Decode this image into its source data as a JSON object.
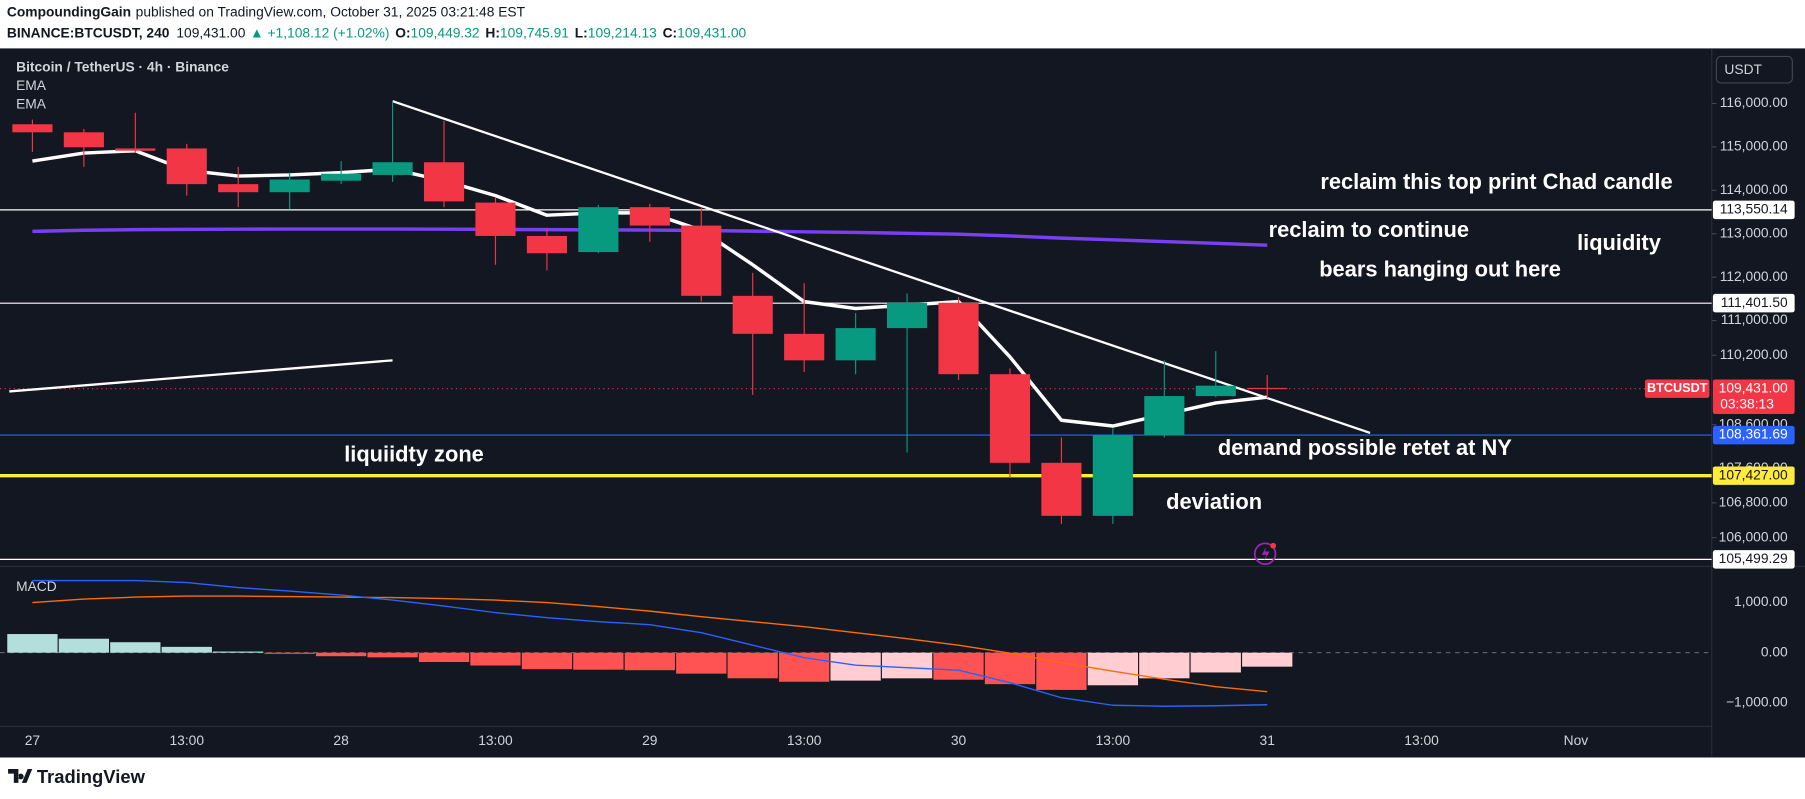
{
  "header": {
    "author": "CompoundingGain",
    "published": "published on TradingView.com, October 31, 2025 03:21:48 EST",
    "symbol": "BINANCE:BTCUSDT, 240",
    "last": "109,431.00",
    "change": "▲ +1,108.12 (+1.02%)",
    "open_label": "O:",
    "open": "109,449.32",
    "high_label": "H:",
    "high": "109,745.91",
    "low_label": "L:",
    "low": "109,214.13",
    "close_label": "C:",
    "close": "109,431.00"
  },
  "footer": {
    "brand": "TradingView"
  },
  "chart_data": {
    "type": "candlestick",
    "title": "Bitcoin / TetherUS · 4h · Binance",
    "currency": "USDT",
    "open": [
      115522,
      115337,
      114965,
      114965,
      114143,
      113957,
      114222,
      114355,
      114647,
      113718,
      112949,
      112578,
      113612,
      113188,
      111570,
      110694,
      110084,
      110827,
      111410,
      109765,
      107723,
      106502,
      108359,
      109261,
      109449.32
    ],
    "high": [
      115629,
      115416,
      115788,
      115071,
      114541,
      114408,
      114674,
      116053,
      115602,
      113825,
      113135,
      113665,
      113692,
      113612,
      112100,
      111861,
      111172,
      111623,
      111543,
      109898,
      108306,
      108518,
      110084,
      110296,
      109745.91
    ],
    "low": [
      114886,
      114541,
      114859,
      113878,
      113612,
      113559,
      114143,
      114196,
      113612,
      112286,
      112153,
      112551,
      112816,
      111437,
      109288,
      109818,
      109765,
      107961,
      109633,
      107378,
      106317,
      106317,
      108306,
      109235,
      109214.13
    ],
    "close": [
      115337,
      114992,
      114912,
      114143,
      113957,
      114249,
      114382,
      114647,
      113745,
      112949,
      112551,
      113612,
      113188,
      111570,
      110694,
      110084,
      110827,
      111410,
      109765,
      107723,
      106502,
      108359,
      109261,
      109500,
      109431
    ],
    "up_color": "#089981",
    "down_color": "#f23645",
    "series": [
      {
        "name": "EMA",
        "color": "#ffffff",
        "values": [
          114674,
          114859,
          114912,
          114461,
          114329,
          114355,
          114408,
          114488,
          114222,
          113878,
          113427,
          113480,
          113480,
          113082,
          112286,
          111437,
          111278,
          111357,
          111437,
          110163,
          108704,
          108571,
          108837,
          109102,
          109235
        ]
      },
      {
        "name": "EMA",
        "color": "#7b3ff2",
        "values": [
          113055,
          113080,
          113095,
          113100,
          113105,
          113108,
          113108,
          113108,
          113105,
          113100,
          113095,
          113090,
          113085,
          113075,
          113060,
          113045,
          113030,
          113010,
          112990,
          112950,
          112900,
          112860,
          112820,
          112780,
          112737
        ]
      }
    ],
    "trendlines": [
      {
        "color": "#ffffff",
        "x": [
          7,
          26
        ],
        "values": [
          116053,
          108412
        ]
      },
      {
        "color": "#ffffff",
        "x": [
          -0.45,
          7
        ],
        "values": [
          109368,
          110084
        ]
      }
    ],
    "levels": [
      {
        "value": 113550.14,
        "label": "113,550.14",
        "color": "#ffffff",
        "text_color": "#131722",
        "width": 1,
        "style": "solid"
      },
      {
        "value": 111401.5,
        "label": "111,401.50",
        "color": "#ffffff",
        "text_color": "#131722",
        "width": 1,
        "style": "solid"
      },
      {
        "value": 109431,
        "label": "109,431.00",
        "color": "#f23645",
        "text_color": "#ffffff",
        "width": 1,
        "style": "dotted",
        "countdown": "03:38:13",
        "tag": "BTCUSDT"
      },
      {
        "value": 108361.69,
        "label": "108,361.69",
        "color": "#2962ff",
        "text_color": "#ffffff",
        "width": 1,
        "style": "solid"
      },
      {
        "value": 107427,
        "label": "107,427.00",
        "color": "#ffeb3b",
        "text_color": "#131722",
        "width": 3,
        "style": "solid"
      },
      {
        "value": 105499.29,
        "label": "105,499.29",
        "color": "#ffffff",
        "text_color": "#131722",
        "width": 1,
        "style": "solid"
      }
    ],
    "annotations": [
      "reclaim this top print Chad candle",
      "reclaim to continue",
      "liquidity",
      "bears hanging out here",
      "liquiidty zone",
      "demand possible retet at NY",
      "deviation"
    ],
    "xlim": [
      -0.63,
      32.64
    ],
    "xticks": [
      {
        "value": 0,
        "label": "27"
      },
      {
        "value": 3,
        "label": "13:00"
      },
      {
        "value": 6,
        "label": "28"
      },
      {
        "value": 9,
        "label": "13:00"
      },
      {
        "value": 12,
        "label": "29"
      },
      {
        "value": 15,
        "label": "13:00"
      },
      {
        "value": 18,
        "label": "30"
      },
      {
        "value": 21,
        "label": "13:00"
      },
      {
        "value": 24,
        "label": "31"
      },
      {
        "value": 27,
        "label": "13:00"
      },
      {
        "value": 30,
        "label": "Nov"
      }
    ],
    "ylim": [
      105390,
      117190
    ],
    "yticks": [
      {
        "value": 116000,
        "label": "116,000.00"
      },
      {
        "value": 115000,
        "label": "115,000.00"
      },
      {
        "value": 114000,
        "label": "114,000.00"
      },
      {
        "value": 113000,
        "label": "113,000.00"
      },
      {
        "value": 112000,
        "label": "112,000.00"
      },
      {
        "value": 111000,
        "label": "111,000.00"
      },
      {
        "value": 110200,
        "label": "110,200.00"
      },
      {
        "value": 108600,
        "label": "108,600.00"
      },
      {
        "value": 107600,
        "label": "107,600.00"
      },
      {
        "value": 106800,
        "label": "106,800.00"
      },
      {
        "value": 106000,
        "label": "106,000.00"
      }
    ],
    "grid": false,
    "macd": {
      "name": "MACD",
      "histogram": [
        372,
        279,
        209,
        116,
        23,
        -23,
        -70,
        -93,
        -186,
        -256,
        -330,
        -340,
        -350,
        -419,
        -512,
        -581,
        -558,
        -512,
        -540,
        -628,
        -744,
        -651,
        -512,
        -395,
        -279
      ],
      "histogram_colors": [
        "#b2dfdb",
        "#b2dfdb",
        "#b2dfdb",
        "#b2dfdb",
        "#b2dfdb",
        "#ff5252",
        "#ff5252",
        "#ff5252",
        "#ff5252",
        "#ff5252",
        "#ff5252",
        "#ff5252",
        "#ff5252",
        "#ff5252",
        "#ff5252",
        "#ff5252",
        "#ffcdd2",
        "#ffcdd2",
        "#ff5252",
        "#ff5252",
        "#ff5252",
        "#ffcdd2",
        "#ffcdd2",
        "#ffcdd2",
        "#ffcdd2"
      ],
      "macd": [
        1440,
        1440,
        1440,
        1400,
        1300,
        1230,
        1150,
        1050,
        930,
        800,
        700,
        620,
        560,
        400,
        150,
        -100,
        -250,
        -300,
        -350,
        -600,
        -900,
        -1050,
        -1070,
        -1060,
        -1040
      ],
      "signal": [
        1000,
        1070,
        1110,
        1130,
        1130,
        1120,
        1110,
        1100,
        1080,
        1050,
        1000,
        920,
        830,
        720,
        620,
        520,
        400,
        280,
        150,
        -10,
        -200,
        -370,
        -530,
        -680,
        -780
      ],
      "macd_color": "#2962ff",
      "signal_color": "#ff6d00",
      "ylim": [
        -1450,
        1700
      ],
      "yticks": [
        {
          "value": 1000,
          "label": "1,000.00"
        },
        {
          "value": 0,
          "label": "0.00"
        },
        {
          "value": -1000,
          "label": "−1,000.00"
        }
      ]
    }
  }
}
